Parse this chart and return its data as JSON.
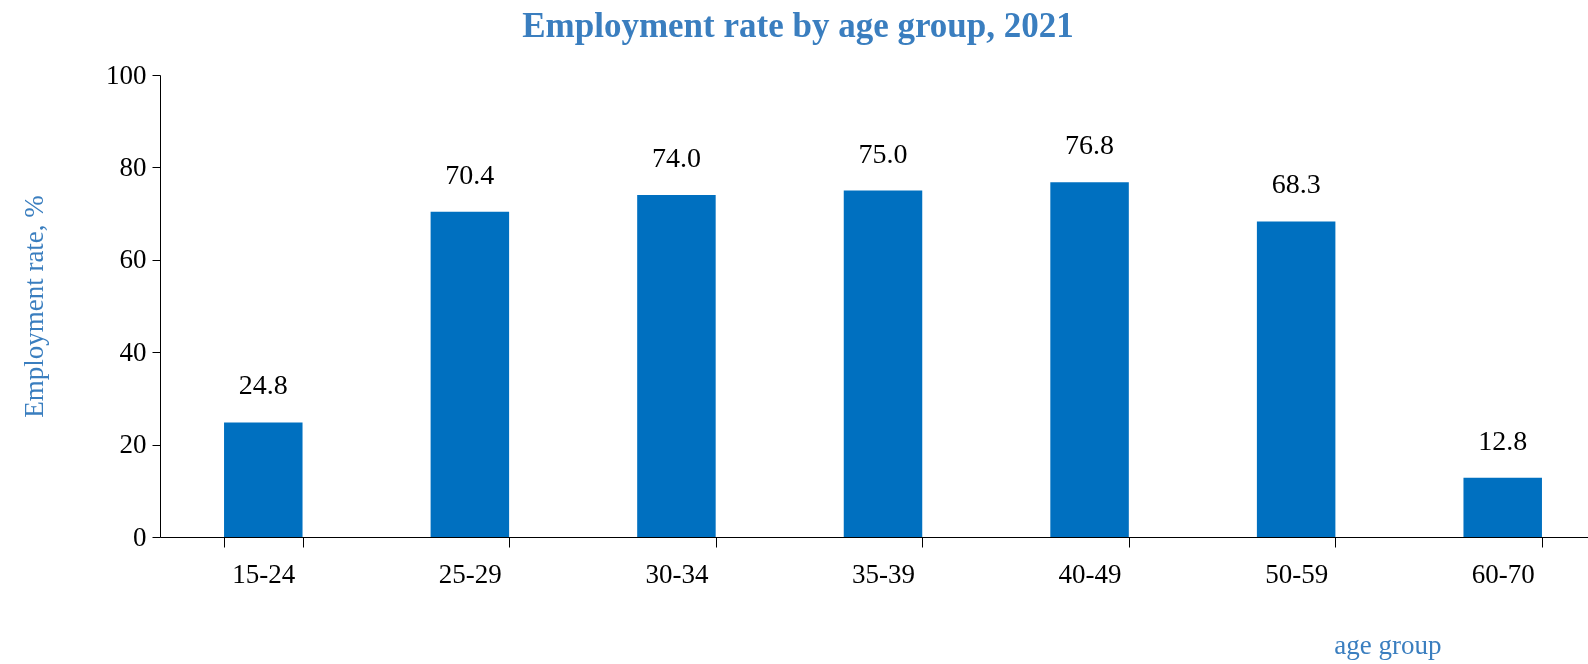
{
  "chart_data": {
    "type": "bar",
    "title": "Employment rate by age group, 2021",
    "xlabel": "age group",
    "ylabel": "Employment rate, %",
    "categories": [
      "15-24",
      "25-29",
      "30-34",
      "35-39",
      "40-49",
      "50-59",
      "60-70"
    ],
    "values": [
      24.8,
      70.4,
      74.0,
      75.0,
      76.8,
      68.3,
      12.8
    ],
    "value_labels": [
      "24.8",
      "70.4",
      "74.0",
      "75.0",
      "76.8",
      "68.3",
      "12.8"
    ],
    "color": "#0070c0",
    "ylim": [
      0,
      100
    ],
    "yticks": [
      0,
      20,
      40,
      60,
      80,
      100
    ],
    "grid": false
  }
}
